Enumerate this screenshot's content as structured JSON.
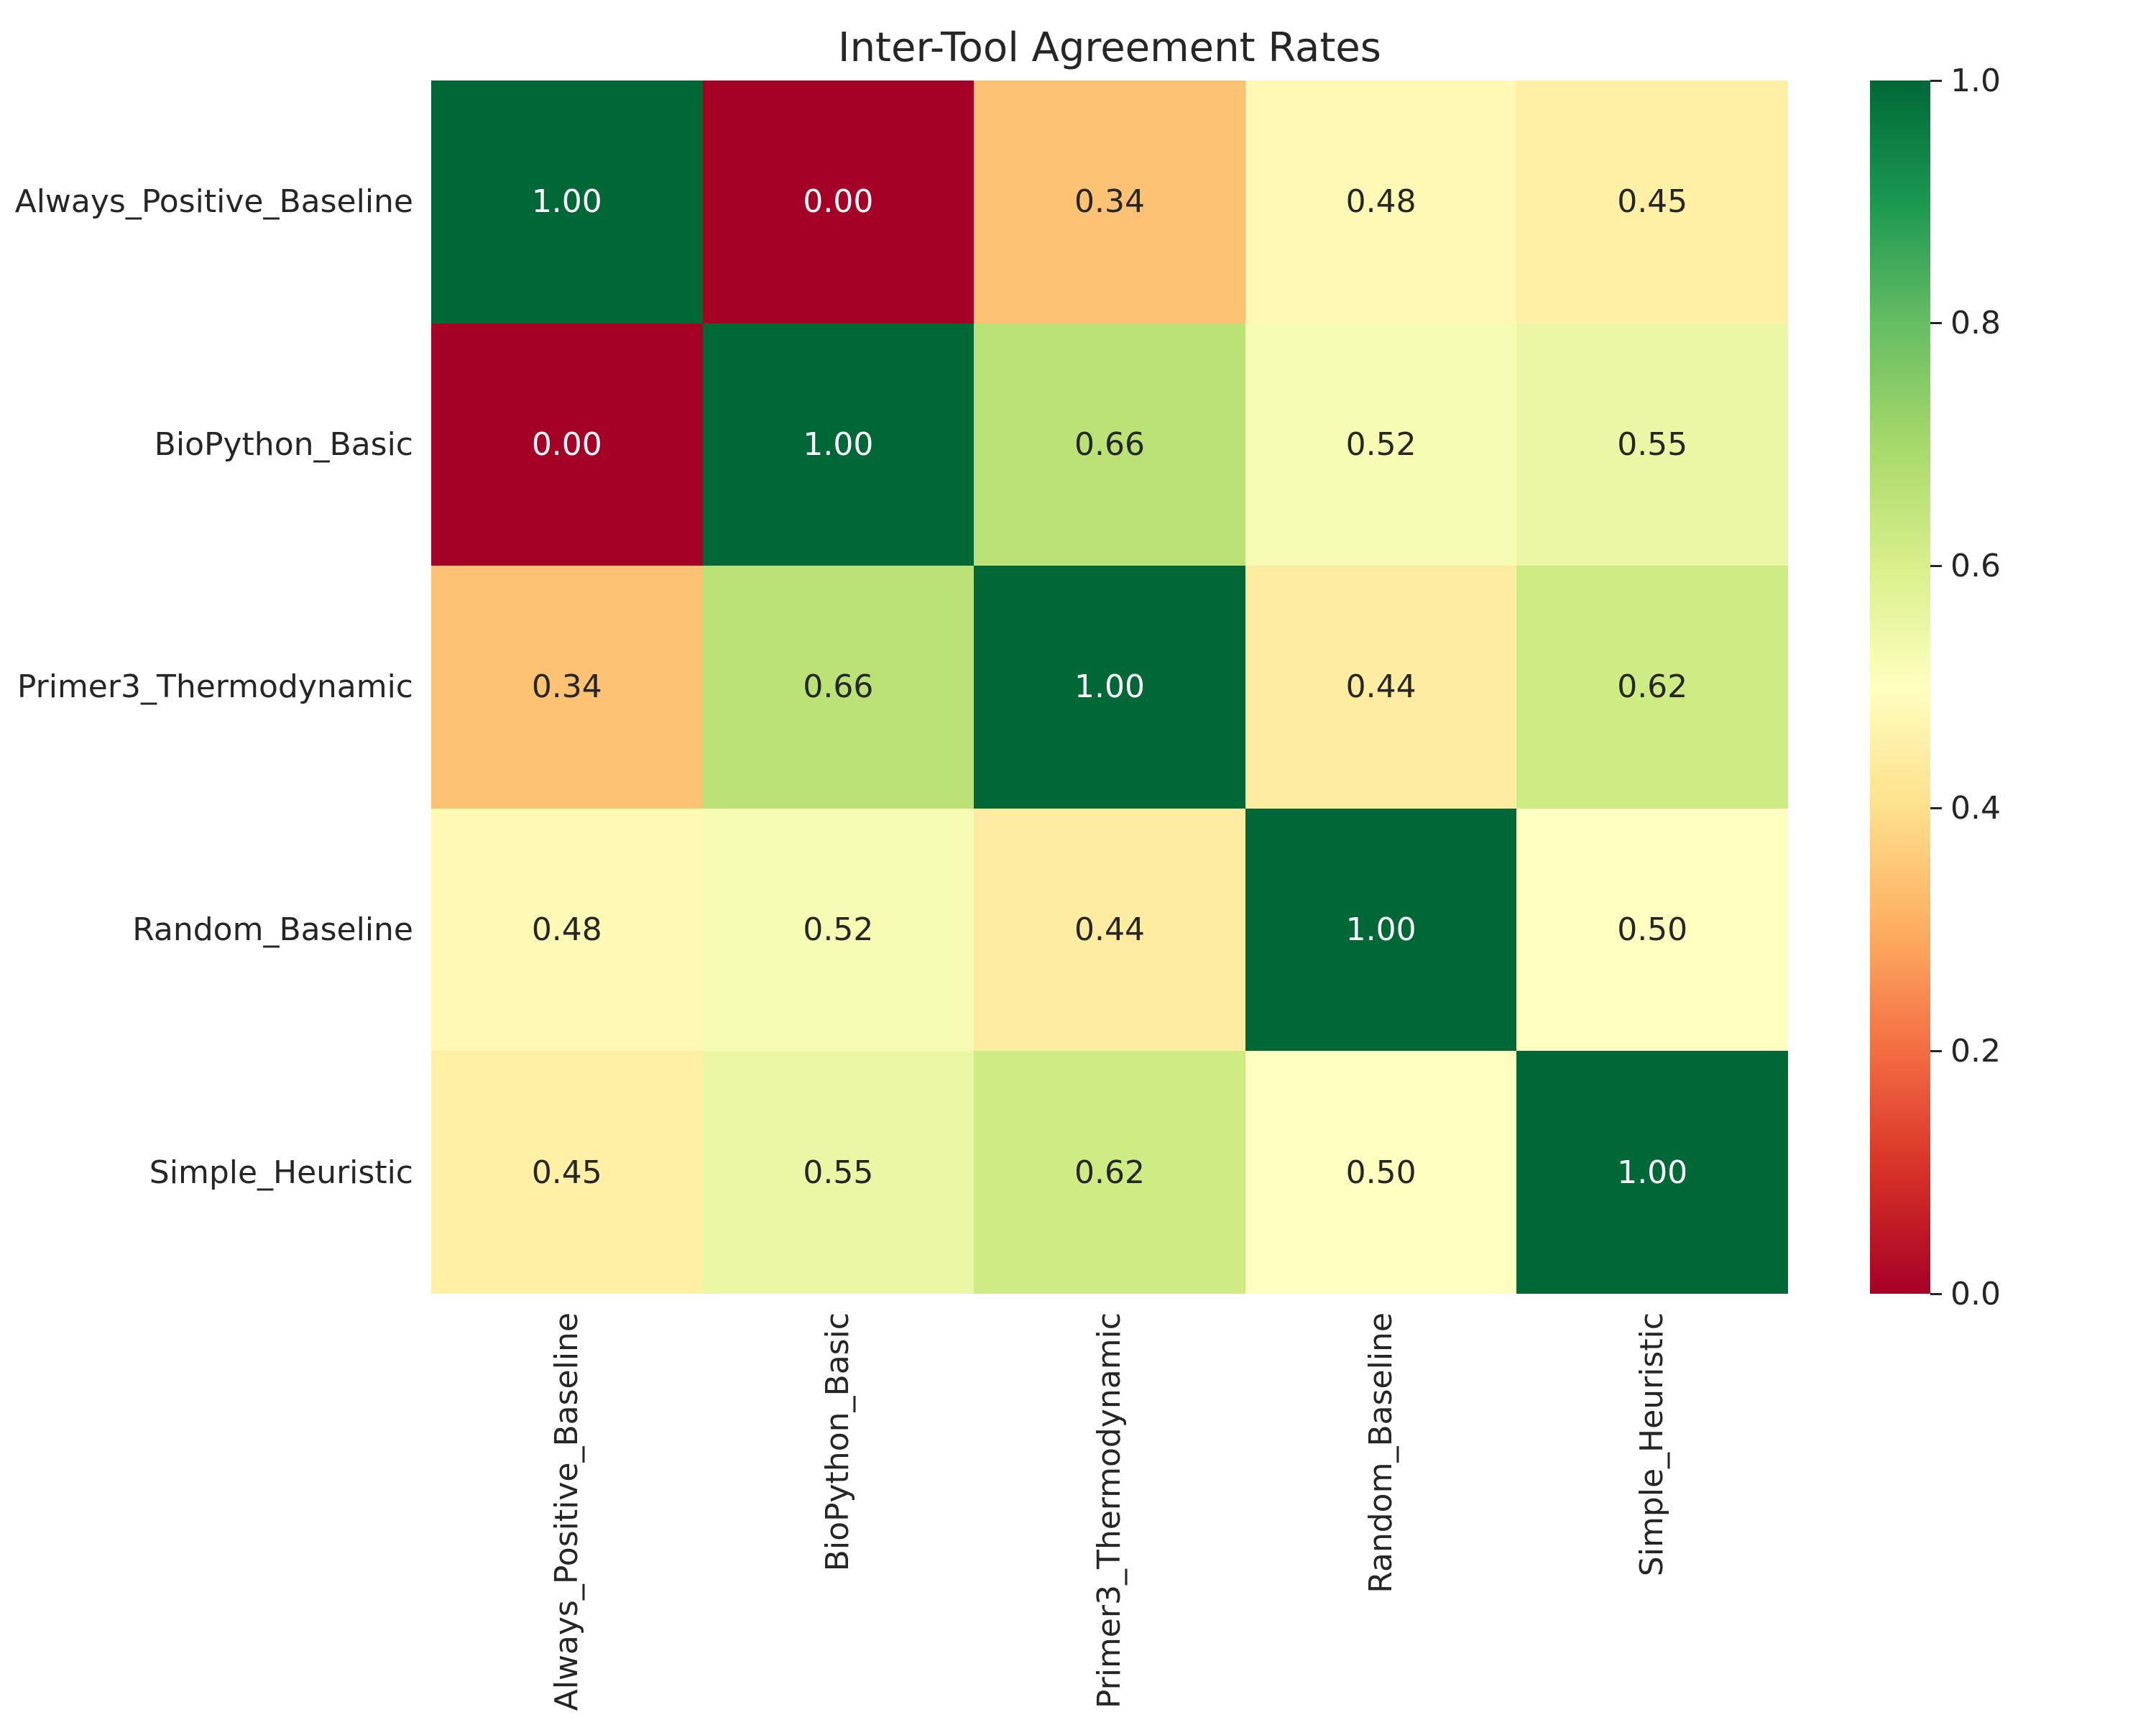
{
  "title": "Inter-Tool Agreement Rates",
  "colors": {
    "background": "#ffffff",
    "text": "#262626",
    "annotation_dark": "#262626",
    "annotation_light": "#ffffff"
  },
  "chart_data": {
    "type": "heatmap",
    "title": "Inter-Tool Agreement Rates",
    "categories": [
      "Always_Positive_Baseline",
      "BioPython_Basic",
      "Primer3_Thermodynamic",
      "Random_Baseline",
      "Simple_Heuristic"
    ],
    "matrix": [
      [
        1.0,
        0.0,
        0.34,
        0.48,
        0.45
      ],
      [
        0.0,
        1.0,
        0.66,
        0.52,
        0.55
      ],
      [
        0.34,
        0.66,
        1.0,
        0.44,
        0.62
      ],
      [
        0.48,
        0.52,
        0.44,
        1.0,
        0.5
      ],
      [
        0.45,
        0.55,
        0.62,
        0.5,
        1.0
      ]
    ],
    "vmin": 0.0,
    "vmax": 1.0,
    "annotations": true,
    "annotation_decimals": 2,
    "grid": false,
    "colormap_name": "RdYlGn",
    "colormap_stops": [
      "#a50026",
      "#d73027",
      "#f46d43",
      "#fdae61",
      "#fee08b",
      "#ffffbf",
      "#d9ef8b",
      "#a6d96a",
      "#66bd63",
      "#1a9850",
      "#006837"
    ],
    "colorbar": {
      "position": "right",
      "tick_labels": [
        "1.0",
        "0.8",
        "0.6",
        "0.4",
        "0.2",
        "0.0"
      ],
      "tick_values": [
        1.0,
        0.8,
        0.6,
        0.4,
        0.2,
        0.0
      ]
    }
  }
}
